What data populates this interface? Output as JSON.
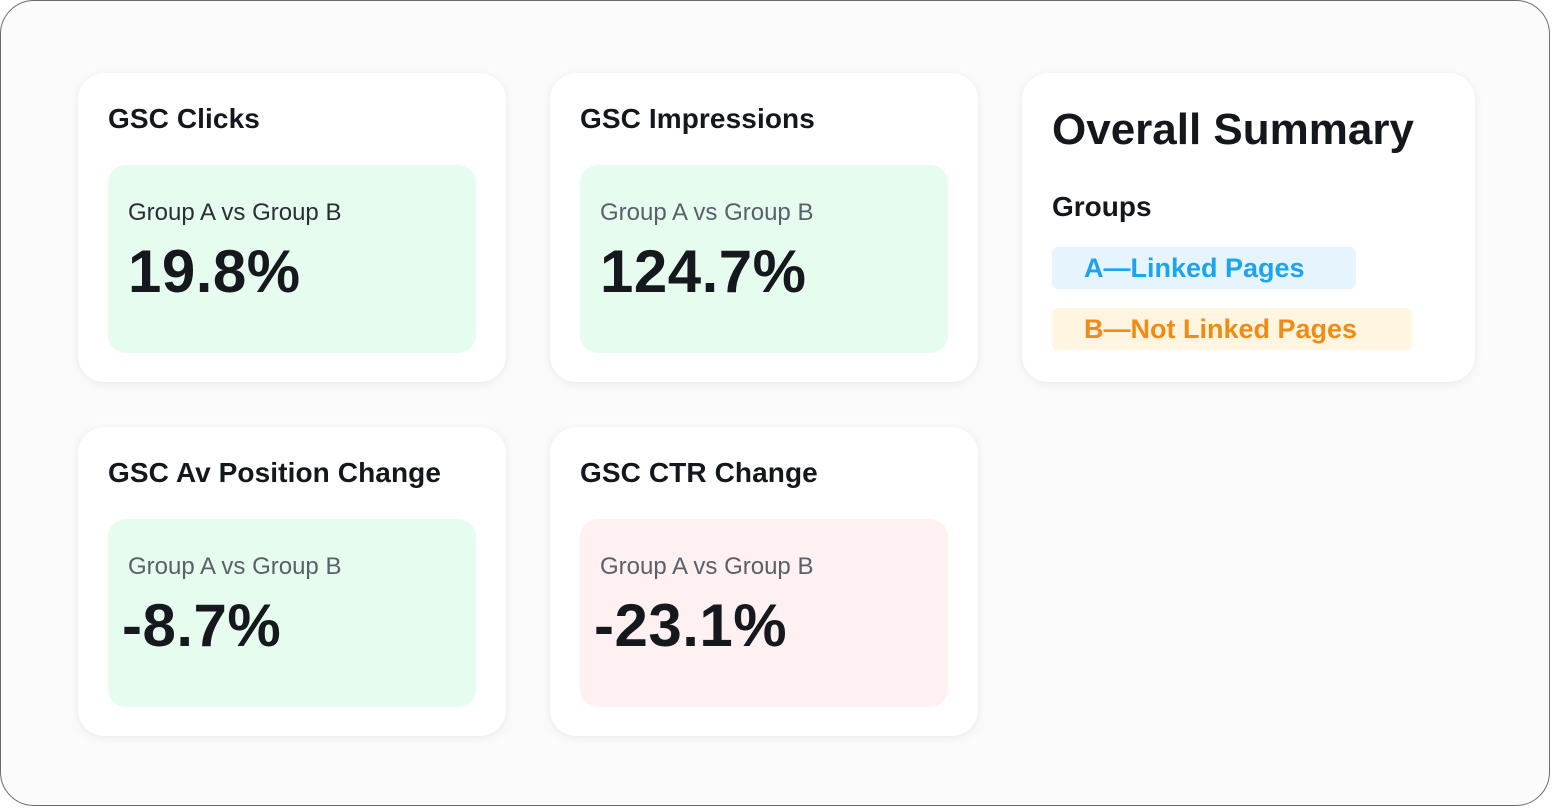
{
  "cards": {
    "clicks": {
      "title": "GSC Clicks",
      "comparison": "Group A vs Group B",
      "value": "19.8%",
      "tone": "green"
    },
    "impressions": {
      "title": "GSC Impressions",
      "comparison": "Group A vs Group B",
      "value": "124.7%",
      "tone": "green"
    },
    "position": {
      "title": "GSC Av Position Change",
      "comparison": "Group A vs Group B",
      "value": "-8.7%",
      "tone": "green"
    },
    "ctr": {
      "title": "GSC CTR Change",
      "comparison": "Group A vs Group B",
      "value": "-23.1%",
      "tone": "red"
    }
  },
  "summary": {
    "title": "Overall Summary",
    "groups_label": "Groups",
    "group_a": "A—Linked Pages",
    "group_b": "B—Not Linked Pages"
  },
  "colors": {
    "positive_bg": "#e6fcef",
    "negative_bg": "#fff0f2",
    "group_a": "#1ea3ee",
    "group_b": "#f28b12"
  }
}
